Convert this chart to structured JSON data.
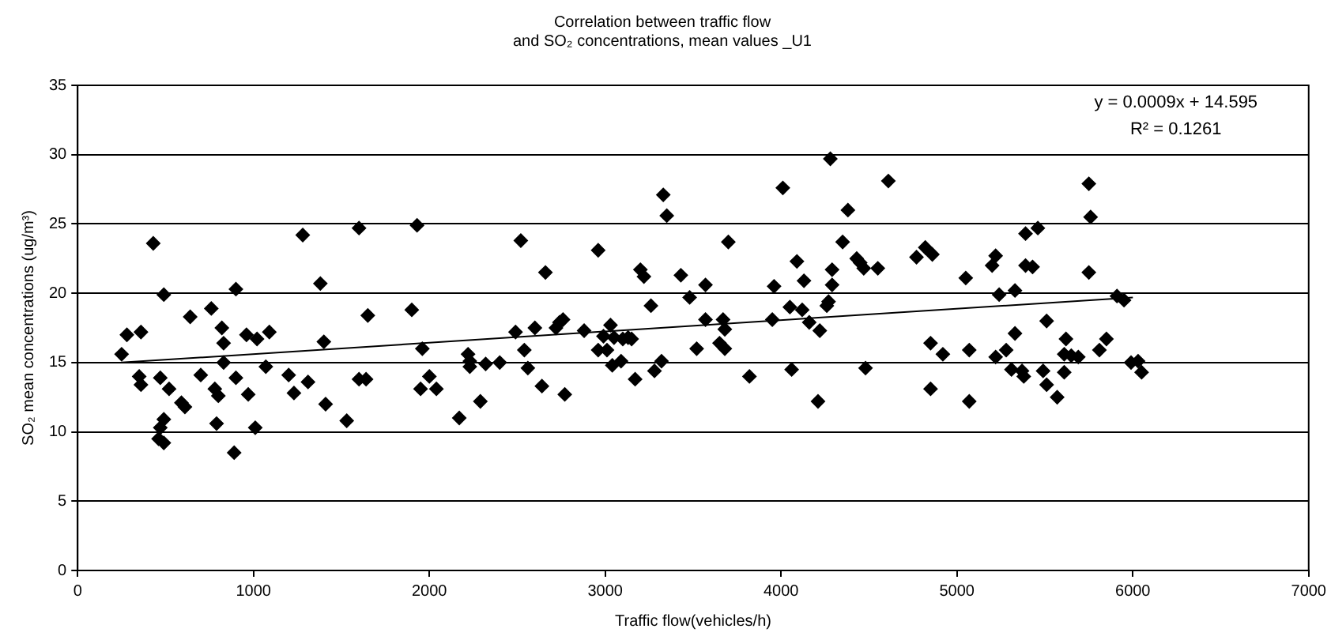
{
  "chart_data": {
    "type": "scatter",
    "title": "Correlation between traffic flow\nand SO₂ concentrations, mean values _U1",
    "xlabel": "Traffic flow(vehicles/h)",
    "ylabel": "SO₂ mean concentrations (ug/m³)",
    "xlim": [
      0,
      7000
    ],
    "xticks": [
      0,
      1000,
      2000,
      3000,
      4000,
      5000,
      6000,
      7000
    ],
    "ylim": [
      0,
      35
    ],
    "yticks": [
      0,
      5,
      10,
      15,
      20,
      25,
      30,
      35
    ],
    "grid": "y",
    "marker": "diamond",
    "annotations": [
      "y = 0.0009x + 14.595",
      "R² = 0.1261"
    ],
    "series": [
      {
        "color": "#000000",
        "x": [
          250,
          280,
          360,
          430,
          350,
          360,
          490,
          470,
          520,
          490,
          470,
          460,
          490,
          590,
          610,
          640,
          700,
          760,
          820,
          830,
          830,
          780,
          800,
          790,
          900,
          900,
          890,
          960,
          1020,
          970,
          1010,
          1090,
          1070,
          1200,
          1230,
          1280,
          1310,
          1380,
          1400,
          1410,
          1530,
          1600,
          1650,
          1600,
          1640,
          1930,
          1900,
          1960,
          1950,
          2000,
          2040,
          2170,
          2220,
          2230,
          2230,
          2290,
          2320,
          2400,
          2520,
          2490,
          2540,
          2560,
          2600,
          2640,
          2660,
          2720,
          2740,
          2760,
          2770,
          2880,
          2960,
          2960,
          2990,
          3010,
          3030,
          3040,
          3050,
          3090,
          3100,
          3130,
          3150,
          3170,
          3200,
          3220,
          3260,
          3280,
          3320,
          3330,
          3350,
          3430,
          3480,
          3520,
          3570,
          3570,
          3670,
          3650,
          3680,
          3680,
          3700,
          3820,
          3950,
          3960,
          4010,
          4050,
          4060,
          4090,
          4120,
          4130,
          4160,
          4210,
          4220,
          4260,
          4270,
          4290,
          4290,
          4280,
          4350,
          4380,
          4430,
          4450,
          4470,
          4480,
          4550,
          4610,
          4770,
          4820,
          4860,
          4850,
          4920,
          4850,
          5050,
          5070,
          5070,
          5200,
          5220,
          5240,
          5220,
          5280,
          5310,
          5330,
          5330,
          5390,
          5460,
          5390,
          5430,
          5370,
          5380,
          5490,
          5510,
          5510,
          5570,
          5620,
          5610,
          5610,
          5650,
          5690,
          5750,
          5760,
          5750,
          5810,
          5850,
          5910,
          5950,
          5990,
          6030,
          6050
        ],
        "values": [
          15.6,
          17.0,
          17.2,
          23.6,
          14.0,
          13.4,
          19.9,
          13.9,
          13.1,
          10.9,
          10.3,
          9.5,
          9.2,
          12.1,
          11.8,
          18.3,
          14.1,
          18.9,
          17.5,
          16.4,
          15.0,
          13.1,
          12.6,
          10.6,
          13.9,
          20.3,
          8.5,
          17.0,
          16.7,
          12.7,
          10.3,
          17.2,
          14.7,
          14.1,
          12.8,
          24.2,
          13.6,
          20.7,
          16.5,
          12.0,
          10.8,
          24.7,
          18.4,
          13.8,
          13.8,
          24.9,
          18.8,
          16.0,
          13.1,
          14.0,
          13.1,
          11.0,
          15.6,
          15.1,
          14.7,
          12.2,
          14.9,
          15.0,
          23.8,
          17.2,
          15.9,
          14.6,
          17.5,
          13.3,
          21.5,
          17.5,
          17.9,
          18.1,
          12.7,
          17.3,
          23.1,
          15.9,
          16.9,
          15.9,
          17.7,
          14.8,
          16.8,
          15.1,
          16.7,
          16.8,
          16.7,
          13.8,
          21.7,
          21.2,
          19.1,
          14.4,
          15.1,
          27.1,
          25.6,
          21.3,
          19.7,
          16.0,
          20.6,
          18.1,
          18.1,
          16.4,
          16.0,
          17.4,
          23.7,
          14.0,
          18.1,
          20.5,
          27.6,
          19.0,
          14.5,
          22.3,
          18.8,
          20.9,
          17.9,
          12.2,
          17.3,
          19.1,
          19.4,
          20.6,
          21.7,
          29.7,
          23.7,
          26.0,
          22.5,
          22.2,
          21.8,
          14.6,
          21.8,
          28.1,
          22.6,
          23.3,
          22.8,
          16.4,
          15.6,
          13.1,
          21.1,
          15.9,
          12.2,
          22.0,
          22.7,
          19.9,
          15.4,
          15.9,
          14.5,
          17.1,
          20.2,
          24.3,
          24.7,
          22.0,
          21.9,
          14.4,
          14.0,
          14.4,
          18.0,
          13.4,
          12.5,
          16.7,
          15.6,
          14.3,
          15.5,
          15.4,
          27.9,
          25.5,
          21.5,
          15.9,
          16.7,
          19.8,
          19.5,
          15.0,
          15.1,
          14.3
        ]
      },
      {
        "type": "line",
        "color": "#000000",
        "marker": "none",
        "x": [
          250,
          6000
        ],
        "values": [
          15.0,
          19.7
        ]
      }
    ]
  }
}
